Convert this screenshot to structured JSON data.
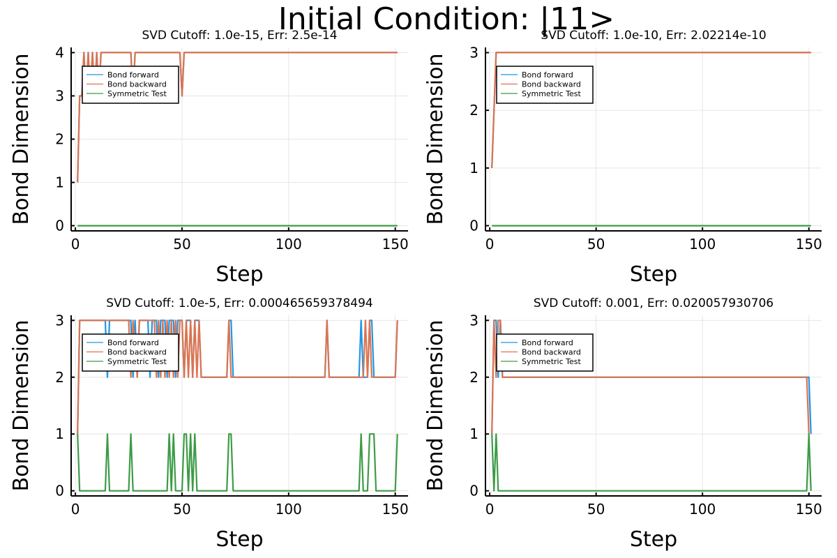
{
  "figure": {
    "suptitle": "Initial Condition: |11>",
    "colors": {
      "bond_forward": "#1f96e6",
      "bond_backward": "#dc7450",
      "symmetric_test": "#3d9b46"
    }
  },
  "chart_data": [
    {
      "type": "line",
      "title": "SVD Cutoff: 1.0e-15, Err: 2.5e-14",
      "xlabel": "Step",
      "ylabel": "Bond Dimension",
      "xlim": [
        -2,
        156
      ],
      "ylim": [
        -0.12,
        4.12
      ],
      "xticks": [
        0,
        50,
        100,
        150
      ],
      "yticks": [
        0,
        1,
        2,
        3,
        4
      ],
      "grid": true,
      "legend": "top-left",
      "series": [
        {
          "name": "Bond forward",
          "points": [
            [
              1,
              1
            ],
            [
              2,
              3
            ],
            [
              3,
              3
            ],
            [
              4,
              4
            ],
            [
              5,
              3
            ],
            [
              6,
              4
            ],
            [
              7,
              3
            ],
            [
              8,
              4
            ],
            [
              9,
              3
            ],
            [
              10,
              4
            ],
            [
              11,
              3
            ],
            [
              12,
              4
            ],
            [
              26,
              4
            ],
            [
              27,
              3
            ],
            [
              28,
              4
            ],
            [
              49,
              4
            ],
            [
              50,
              3
            ],
            [
              51,
              4
            ],
            [
              151,
              4
            ]
          ]
        },
        {
          "name": "Bond backward",
          "points": [
            [
              1,
              1
            ],
            [
              2,
              3
            ],
            [
              3,
              3
            ],
            [
              4,
              4
            ],
            [
              5,
              3
            ],
            [
              6,
              4
            ],
            [
              7,
              3
            ],
            [
              8,
              4
            ],
            [
              9,
              3
            ],
            [
              10,
              4
            ],
            [
              11,
              3
            ],
            [
              12,
              4
            ],
            [
              26,
              4
            ],
            [
              27,
              3
            ],
            [
              28,
              4
            ],
            [
              49,
              4
            ],
            [
              50,
              3
            ],
            [
              51,
              4
            ],
            [
              151,
              4
            ]
          ]
        },
        {
          "name": "Symmetric Test",
          "points": [
            [
              1,
              0
            ],
            [
              151,
              0
            ]
          ]
        }
      ]
    },
    {
      "type": "line",
      "title": "SVD Cutoff: 1.0e-10, Err: 2.02214e-10",
      "xlabel": "Step",
      "ylabel": "Bond Dimension",
      "xlim": [
        -2,
        156
      ],
      "ylim": [
        -0.09,
        3.09
      ],
      "xticks": [
        0,
        50,
        100,
        150
      ],
      "yticks": [
        0,
        1,
        2,
        3
      ],
      "grid": true,
      "legend": "top-left",
      "series": [
        {
          "name": "Bond forward",
          "points": [
            [
              1,
              1
            ],
            [
              3,
              3
            ],
            [
              151,
              3
            ]
          ]
        },
        {
          "name": "Bond backward",
          "points": [
            [
              1,
              1
            ],
            [
              3,
              3
            ],
            [
              151,
              3
            ]
          ]
        },
        {
          "name": "Symmetric Test",
          "points": [
            [
              1,
              0
            ],
            [
              151,
              0
            ]
          ]
        }
      ]
    },
    {
      "type": "line",
      "title": "SVD Cutoff: 1.0e-5, Err: 0.000465659378494",
      "xlabel": "Step",
      "ylabel": "Bond Dimension",
      "xlim": [
        -2,
        156
      ],
      "ylim": [
        -0.09,
        3.09
      ],
      "xticks": [
        0,
        50,
        100,
        150
      ],
      "yticks": [
        0,
        1,
        2,
        3
      ],
      "grid": true,
      "legend": "top-left",
      "series": [
        {
          "name": "Bond forward",
          "points": [
            [
              1,
              1
            ],
            [
              2,
              3
            ],
            [
              14,
              3
            ],
            [
              15,
              2
            ],
            [
              16,
              3
            ],
            [
              26,
              3
            ],
            [
              27,
              2
            ],
            [
              28,
              3
            ],
            [
              29,
              2
            ],
            [
              30,
              3
            ],
            [
              34,
              3
            ],
            [
              35,
              2
            ],
            [
              36,
              3
            ],
            [
              38,
              3
            ],
            [
              39,
              2
            ],
            [
              40,
              3
            ],
            [
              42,
              3
            ],
            [
              43,
              2
            ],
            [
              44,
              3
            ],
            [
              46,
              3
            ],
            [
              47,
              2
            ],
            [
              48,
              3
            ],
            [
              50,
              3
            ],
            [
              51,
              2
            ],
            [
              52,
              3
            ],
            [
              54,
              3
            ],
            [
              55,
              2
            ],
            [
              56,
              3
            ],
            [
              58,
              3
            ],
            [
              59,
              2
            ],
            [
              71,
              2
            ],
            [
              72,
              3
            ],
            [
              73,
              3
            ],
            [
              74,
              2
            ],
            [
              117,
              2
            ],
            [
              118,
              3
            ],
            [
              119,
              2
            ],
            [
              133,
              2
            ],
            [
              134,
              3
            ],
            [
              135,
              2
            ],
            [
              137,
              2
            ],
            [
              138,
              3
            ],
            [
              139,
              3
            ],
            [
              140,
              2
            ],
            [
              150,
              2
            ],
            [
              151,
              3
            ]
          ]
        },
        {
          "name": "Bond backward",
          "points": [
            [
              1,
              1
            ],
            [
              2,
              3
            ],
            [
              25,
              3
            ],
            [
              26,
              2
            ],
            [
              27,
              3
            ],
            [
              29,
              2
            ],
            [
              30,
              3
            ],
            [
              37,
              3
            ],
            [
              38,
              2
            ],
            [
              39,
              3
            ],
            [
              40,
              2
            ],
            [
              41,
              3
            ],
            [
              42,
              2
            ],
            [
              43,
              3
            ],
            [
              44,
              2
            ],
            [
              45,
              3
            ],
            [
              46,
              2
            ],
            [
              47,
              3
            ],
            [
              48,
              2
            ],
            [
              49,
              3
            ],
            [
              50,
              3
            ],
            [
              51,
              2
            ],
            [
              52,
              3
            ],
            [
              53,
              2
            ],
            [
              54,
              3
            ],
            [
              55,
              2
            ],
            [
              56,
              3
            ],
            [
              57,
              2
            ],
            [
              58,
              3
            ],
            [
              59,
              2
            ],
            [
              71,
              2
            ],
            [
              72,
              3
            ],
            [
              73,
              2
            ],
            [
              117,
              2
            ],
            [
              118,
              3
            ],
            [
              119,
              2
            ],
            [
              135,
              2
            ],
            [
              136,
              3
            ],
            [
              137,
              2
            ],
            [
              138,
              3
            ],
            [
              139,
              2
            ],
            [
              150,
              2
            ],
            [
              151,
              3
            ]
          ]
        },
        {
          "name": "Symmetric Test",
          "points": [
            [
              1,
              1
            ],
            [
              2,
              0
            ],
            [
              14,
              0
            ],
            [
              15,
              1
            ],
            [
              16,
              0
            ],
            [
              25,
              0
            ],
            [
              26,
              1
            ],
            [
              27,
              0
            ],
            [
              43,
              0
            ],
            [
              44,
              1
            ],
            [
              45,
              0
            ],
            [
              46,
              1
            ],
            [
              47,
              0
            ],
            [
              50,
              0
            ],
            [
              51,
              1
            ],
            [
              52,
              1
            ],
            [
              53,
              0
            ],
            [
              54,
              1
            ],
            [
              55,
              0
            ],
            [
              56,
              1
            ],
            [
              57,
              0
            ],
            [
              71,
              0
            ],
            [
              72,
              1
            ],
            [
              73,
              1
            ],
            [
              74,
              0
            ],
            [
              133,
              0
            ],
            [
              134,
              1
            ],
            [
              135,
              0
            ],
            [
              137,
              0
            ],
            [
              138,
              1
            ],
            [
              140,
              1
            ],
            [
              141,
              0
            ],
            [
              150,
              0
            ],
            [
              151,
              1
            ]
          ]
        }
      ]
    },
    {
      "type": "line",
      "title": "SVD Cutoff: 0.001, Err: 0.020057930706",
      "xlabel": "Step",
      "ylabel": "Bond Dimension",
      "xlim": [
        -2,
        156
      ],
      "ylim": [
        -0.09,
        3.09
      ],
      "xticks": [
        0,
        50,
        100,
        150
      ],
      "yticks": [
        0,
        1,
        2,
        3
      ],
      "grid": true,
      "legend": "top-left",
      "series": [
        {
          "name": "Bond forward",
          "points": [
            [
              1,
              1
            ],
            [
              2,
              3
            ],
            [
              3,
              3
            ],
            [
              4,
              2
            ],
            [
              5,
              3
            ],
            [
              6,
              2
            ],
            [
              150,
              2
            ],
            [
              151,
              1
            ]
          ]
        },
        {
          "name": "Bond backward",
          "points": [
            [
              1,
              1
            ],
            [
              2,
              3
            ],
            [
              3,
              2
            ],
            [
              4,
              3
            ],
            [
              5,
              3
            ],
            [
              6,
              2
            ],
            [
              149,
              2
            ],
            [
              150,
              1
            ]
          ]
        },
        {
          "name": "Symmetric Test",
          "points": [
            [
              1,
              1
            ],
            [
              2,
              0
            ],
            [
              3,
              1
            ],
            [
              4,
              0
            ],
            [
              149,
              0
            ],
            [
              150,
              1
            ],
            [
              151,
              0
            ]
          ]
        }
      ]
    }
  ]
}
